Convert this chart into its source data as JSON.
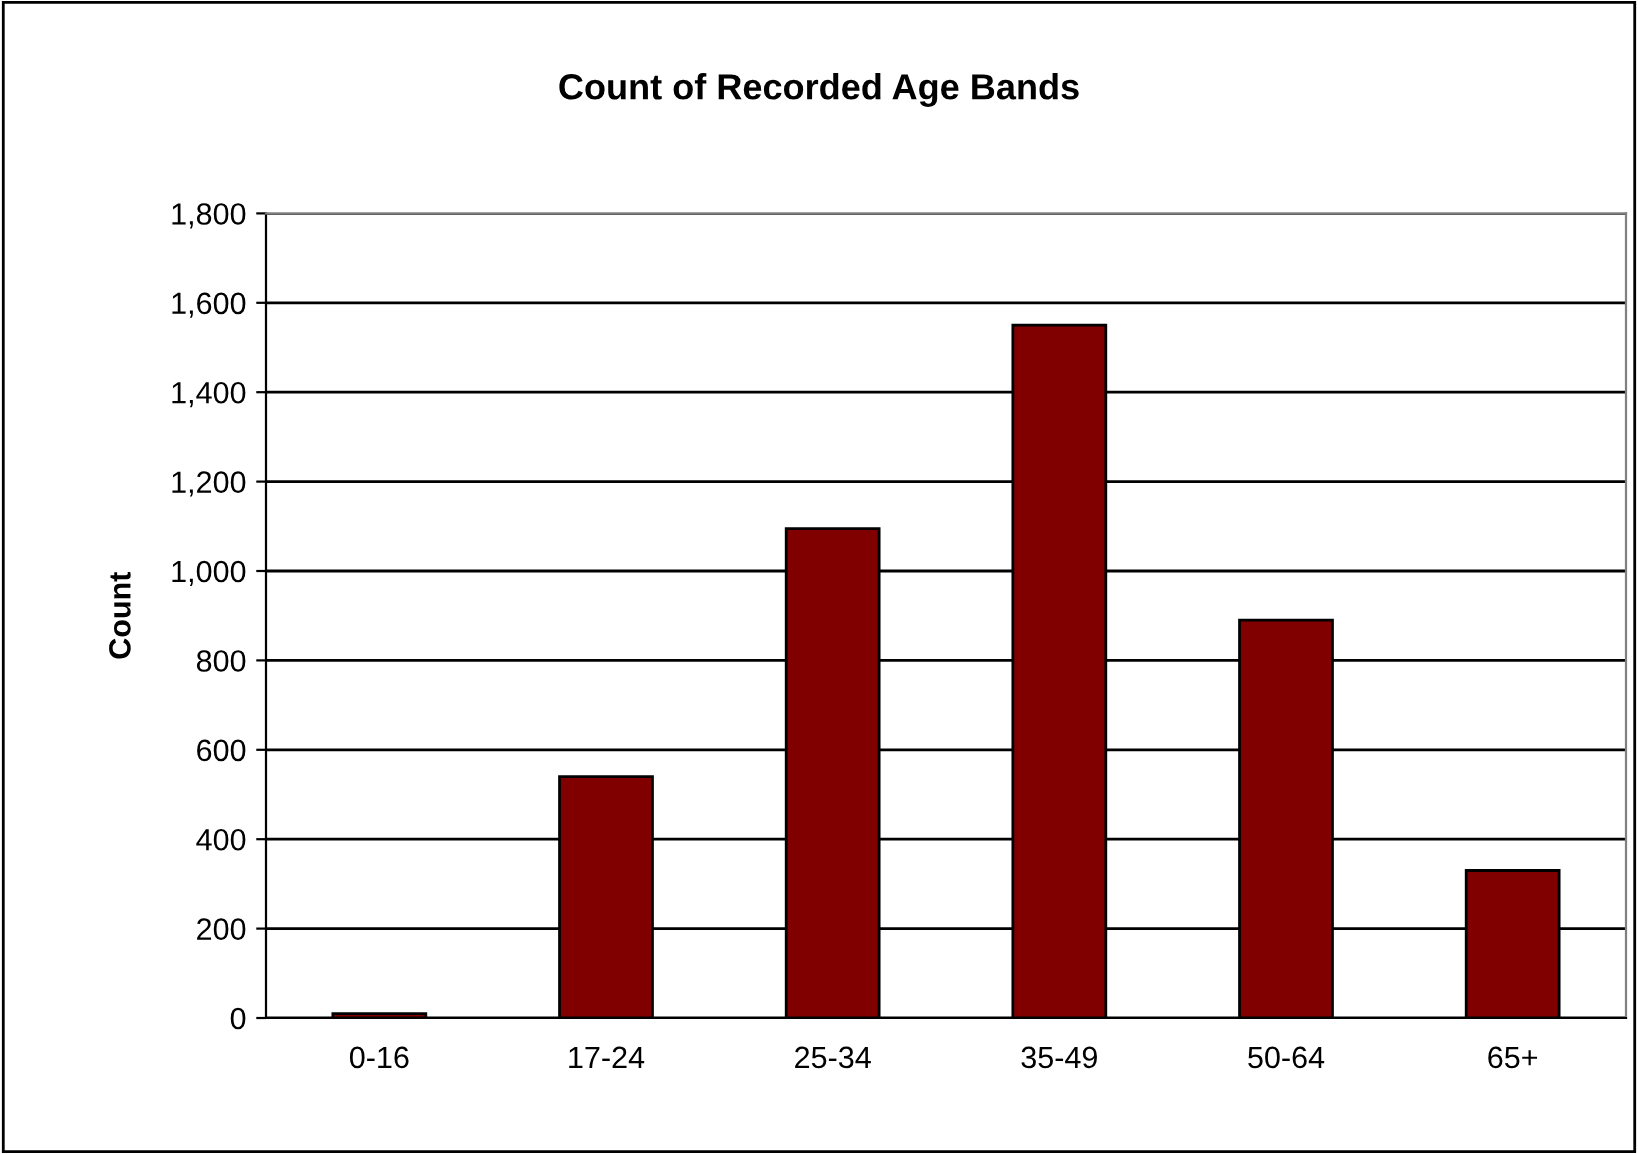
{
  "chart_data": {
    "type": "bar",
    "title": "Count of Recorded Age Bands",
    "ylabel": "Count",
    "categories": [
      "0-16",
      "17-24",
      "25-34",
      "35-49",
      "50-64",
      "65+"
    ],
    "values": [
      10,
      540,
      1095,
      1550,
      890,
      330
    ],
    "color": "#800000",
    "ylim": [
      0,
      1800
    ],
    "yticks": [
      {
        "value": 0,
        "label": "0"
      },
      {
        "value": 200,
        "label": "200"
      },
      {
        "value": 400,
        "label": "400"
      },
      {
        "value": 600,
        "label": "600"
      },
      {
        "value": 800,
        "label": "800"
      },
      {
        "value": 1000,
        "label": "1,000"
      },
      {
        "value": 1200,
        "label": "1,200"
      },
      {
        "value": 1400,
        "label": "1,400"
      },
      {
        "value": 1600,
        "label": "1,600"
      },
      {
        "value": 1800,
        "label": "1,800"
      }
    ],
    "grid": "y"
  }
}
